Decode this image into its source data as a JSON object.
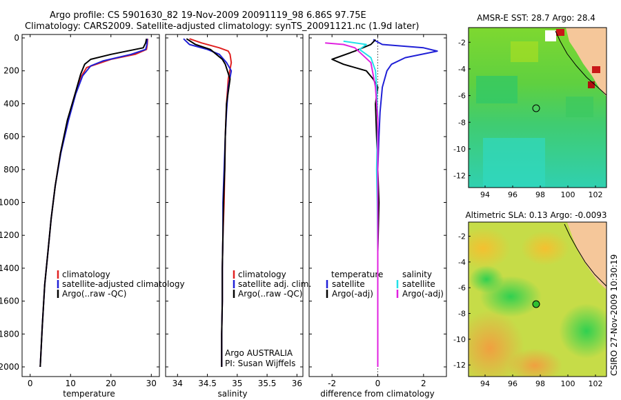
{
  "header": {
    "line1": "Argo profile: CS 5901630_82 19-Nov-2009 20091119_98 6.86S 97.75E",
    "line2": "Climatology: CARS2009. Satellite-adjusted climatology: synTS_20091121.nc (1.9d later)"
  },
  "side_label": "CSIRO 27-Nov-2009 10:30:19",
  "colors": {
    "climatology": "#e02020",
    "satellite": "#1f1fd6",
    "argo": "#000000",
    "cyan": "#22e0e8",
    "magenta": "#e020e0",
    "land": "#f5c79a"
  },
  "chart_data": [
    {
      "type": "line",
      "title": "",
      "xlabel": "temperature",
      "ylabel": "",
      "xlim": [
        -2,
        32
      ],
      "ylim": [
        2050,
        0
      ],
      "xticks": [
        "0",
        "10",
        "20",
        "30"
      ],
      "xtick_values": [
        0,
        10,
        20,
        30
      ],
      "yticks": [
        "0",
        "200",
        "400",
        "600",
        "800",
        "1000",
        "1200",
        "1400",
        "1600",
        "1800",
        "2000"
      ],
      "ytick_values": [
        0,
        200,
        400,
        600,
        800,
        1000,
        1200,
        1400,
        1600,
        1800,
        2000
      ],
      "legend": [
        "climatology",
        "satellite-adjusted climatology",
        "Argo(..raw -QC)"
      ],
      "series": [
        {
          "name": "climatology",
          "color": "#e02020",
          "x": [
            29.1,
            29.0,
            28.8,
            26,
            20,
            14,
            12.5,
            11,
            9.3,
            7.5,
            6.2,
            5.2,
            4.4,
            3.6,
            3.0,
            2.5
          ],
          "y": [
            5,
            40,
            70,
            100,
            130,
            180,
            240,
            350,
            500,
            700,
            900,
            1100,
            1300,
            1500,
            1750,
            2000
          ]
        },
        {
          "name": "satellite-adjusted climatology",
          "color": "#1f1fd6",
          "x": [
            29.0,
            28.9,
            28.6,
            25,
            18,
            15,
            13,
            11.3,
            9.5,
            7.6,
            6.2,
            5.2,
            4.4,
            3.6,
            3.0,
            2.5
          ],
          "y": [
            5,
            40,
            70,
            100,
            140,
            170,
            230,
            340,
            500,
            700,
            900,
            1100,
            1300,
            1500,
            1750,
            2000
          ]
        },
        {
          "name": "Argo(..raw -QC)",
          "color": "#000000",
          "x": [
            28.8,
            28.6,
            28,
            20,
            15,
            13.5,
            12.5,
            11,
            9.2,
            7.5,
            6.2,
            5.2,
            4.4,
            3.6,
            3.0,
            2.5
          ],
          "y": [
            5,
            30,
            60,
            100,
            130,
            160,
            220,
            350,
            500,
            700,
            900,
            1100,
            1300,
            1500,
            1750,
            2000
          ]
        }
      ]
    },
    {
      "type": "line",
      "title": "",
      "xlabel": "salinity",
      "ylabel": "",
      "xlim": [
        33.8,
        36.1
      ],
      "ylim": [
        2050,
        0
      ],
      "xticks": [
        "34",
        "34.5",
        "35",
        "35.5",
        "36"
      ],
      "xtick_values": [
        34,
        34.5,
        35,
        35.5,
        36
      ],
      "legend": [
        "climatology",
        "satellite adj. clim.",
        "Argo(..raw -QC)"
      ],
      "annotation": [
        "Argo AUSTRALIA",
        "PI: Susan Wijffels"
      ],
      "series": [
        {
          "name": "climatology",
          "color": "#e02020",
          "x": [
            34.2,
            34.4,
            34.7,
            34.85,
            34.88,
            34.9,
            34.85,
            34.82,
            34.8,
            34.79,
            34.78,
            34.76,
            34.75,
            34.75,
            34.74,
            34.74
          ],
          "y": [
            5,
            30,
            60,
            80,
            100,
            150,
            250,
            400,
            600,
            800,
            1000,
            1200,
            1400,
            1600,
            1800,
            2000
          ]
        },
        {
          "name": "satellite adj. clim.",
          "color": "#1f1fd6",
          "x": [
            34.1,
            34.2,
            34.5,
            34.7,
            34.82,
            34.9,
            34.85,
            34.82,
            34.8,
            34.78,
            34.76,
            34.76,
            34.75,
            34.75,
            34.74,
            34.74
          ],
          "y": [
            5,
            40,
            70,
            100,
            150,
            200,
            300,
            450,
            600,
            800,
            1000,
            1200,
            1400,
            1600,
            1800,
            2000
          ]
        },
        {
          "name": "Argo(..raw -QC)",
          "color": "#000000",
          "x": [
            34.15,
            34.3,
            34.55,
            34.65,
            34.75,
            34.8,
            34.88,
            34.82,
            34.8,
            34.79,
            34.77,
            34.76,
            34.75,
            34.75,
            34.74,
            34.74
          ],
          "y": [
            5,
            40,
            70,
            100,
            130,
            160,
            250,
            400,
            600,
            800,
            1000,
            1200,
            1400,
            1600,
            1800,
            2000
          ]
        }
      ]
    },
    {
      "type": "line",
      "title": "",
      "xlabel": "difference from climatology",
      "ylabel": "",
      "xlim": [
        -3,
        3
      ],
      "ylim": [
        2050,
        0
      ],
      "xticks": [
        "-2",
        "0",
        "2"
      ],
      "xtick_values": [
        -2,
        0,
        2
      ],
      "legend_left_title": "temperature",
      "legend_right_title": "salinity",
      "legend": [
        "satellite",
        "Argo(-adj)",
        "satellite",
        "Argo(-adj)"
      ],
      "series": [
        {
          "name": "temperature satellite",
          "color": "#1f1fd6",
          "x": [
            -0.2,
            0.2,
            2.0,
            2.6,
            1.2,
            0.6,
            0.4,
            0.2,
            0.1,
            0.05,
            0.0,
            0.0,
            0.0,
            0.0,
            0.0
          ],
          "y": [
            10,
            40,
            60,
            80,
            120,
            160,
            200,
            300,
            450,
            600,
            800,
            1000,
            1300,
            1600,
            2000
          ]
        },
        {
          "name": "temperature Argo(-adj)",
          "color": "#000000",
          "x": [
            -0.1,
            -0.3,
            -1.0,
            -2.0,
            -1.5,
            -0.5,
            -0.2,
            0.0,
            -0.1,
            -0.05,
            0.0,
            0.05,
            0.0,
            0.0,
            0.0
          ],
          "y": [
            10,
            40,
            80,
            130,
            160,
            200,
            250,
            300,
            400,
            600,
            800,
            1000,
            1300,
            1600,
            2000
          ]
        },
        {
          "name": "salinity satellite",
          "color": "#22e0e8",
          "x": [
            -1.5,
            -0.5,
            -0.8,
            -0.3,
            -0.1,
            -0.05,
            0.0,
            -0.05,
            -0.02,
            0.0,
            0.0,
            0.0
          ],
          "y": [
            20,
            40,
            70,
            120,
            200,
            300,
            500,
            800,
            1000,
            1300,
            1600,
            2000
          ]
        },
        {
          "name": "salinity Argo(-adj)",
          "color": "#e020e0",
          "x": [
            -2.3,
            -1.5,
            -1.0,
            -0.3,
            -0.1,
            0.0,
            0.0,
            0.0,
            0.0
          ],
          "y": [
            30,
            40,
            60,
            150,
            300,
            500,
            800,
            1200,
            2000
          ]
        }
      ]
    },
    {
      "type": "heatmap",
      "title": "AMSR-E SST: 28.7  Argo: 28.4",
      "xticks": [
        "94",
        "96",
        "98",
        "100",
        "102"
      ],
      "xtick_values": [
        94,
        96,
        98,
        100,
        102
      ],
      "yticks": [
        "-2",
        "-4",
        "-6",
        "-8",
        "-10",
        "-12"
      ],
      "ytick_values": [
        -2,
        -4,
        -6,
        -8,
        -10,
        -12
      ],
      "xlim": [
        92.8,
        102.8
      ],
      "ylim": [
        -12.9,
        -0.9
      ],
      "argo_position": [
        97.75,
        -6.86
      ]
    },
    {
      "type": "heatmap",
      "title": "Altimetric SLA: 0.13  Argo: -0.0093",
      "xticks": [
        "94",
        "96",
        "98",
        "100",
        "102"
      ],
      "xtick_values": [
        94,
        96,
        98,
        100,
        102
      ],
      "yticks": [
        "-2",
        "-4",
        "-6",
        "-8",
        "-10",
        "-12"
      ],
      "ytick_values": [
        -2,
        -4,
        -6,
        -8,
        -10,
        -12
      ],
      "xlim": [
        92.8,
        102.8
      ],
      "ylim": [
        -12.9,
        -0.9
      ],
      "argo_position": [
        97.75,
        -6.86
      ]
    }
  ]
}
